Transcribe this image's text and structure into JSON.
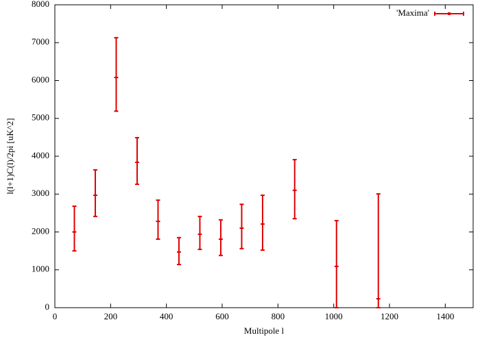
{
  "chart_data": {
    "type": "errorbar",
    "x_label": "Multipole l",
    "y_label": "l(l+1)C(l)/2pi [uK^2]",
    "xlim": [
      0,
      1500
    ],
    "xticks": [
      0,
      200,
      400,
      600,
      800,
      1000,
      1200,
      1400
    ],
    "ylim": [
      0,
      8000
    ],
    "yticks": [
      0,
      1000,
      2000,
      3000,
      4000,
      5000,
      6000,
      7000,
      8000
    ],
    "legend": "top-right",
    "series": [
      {
        "name": "'Maxima'",
        "color": "#e00000",
        "x": [
          70,
          145,
          220,
          295,
          370,
          445,
          520,
          595,
          670,
          745,
          860,
          1010,
          1160
        ],
        "values": [
          2000,
          2970,
          6080,
          3840,
          2280,
          1470,
          1940,
          1810,
          2100,
          2210,
          3100,
          1090,
          235
        ],
        "lower": [
          1500,
          2410,
          5190,
          3260,
          1810,
          1140,
          1540,
          1380,
          1560,
          1520,
          2350,
          0,
          0
        ],
        "upper": [
          2680,
          3640,
          7130,
          4490,
          2840,
          1850,
          2410,
          2320,
          2730,
          2970,
          3910,
          2300,
          3005
        ]
      }
    ]
  }
}
